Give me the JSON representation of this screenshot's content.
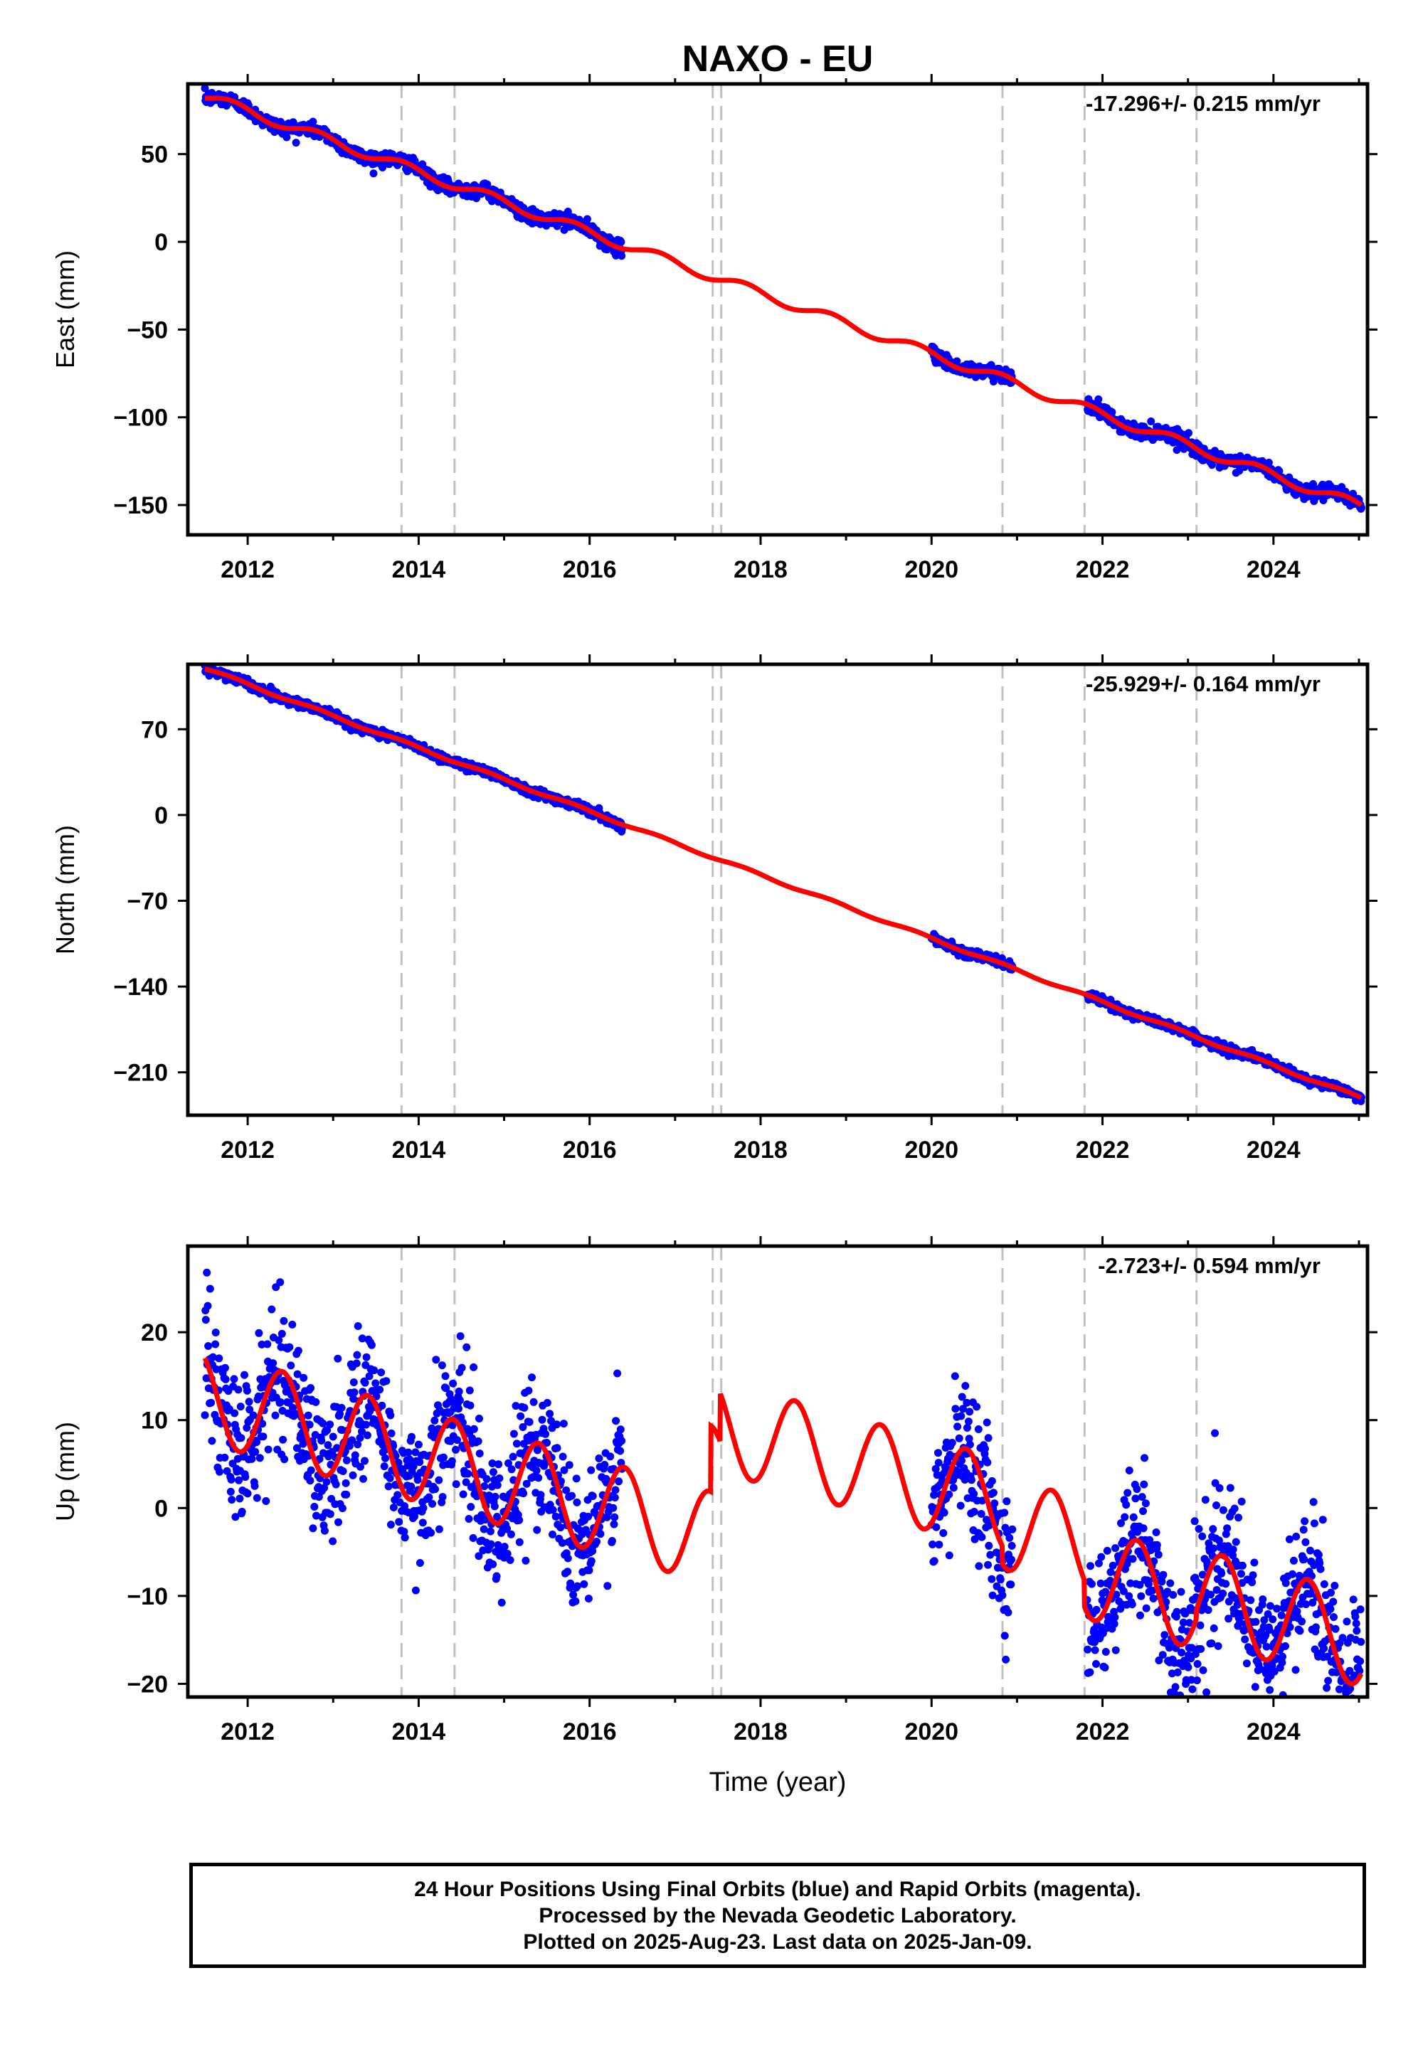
{
  "title": "NAXO - EU",
  "xlabel": "Time (year)",
  "colors": {
    "data": "#0000ff",
    "model": "#ff0000",
    "events": "#c0c0c0",
    "frame": "#000000"
  },
  "caption": {
    "line1": "24 Hour Positions Using Final Orbits (blue) and Rapid Orbits (magenta).",
    "line2": "Processed by the Nevada Geodetic Laboratory.",
    "line3": "Plotted on 2025-Aug-23. Last data on 2025-Jan-09."
  },
  "chart_data": [
    {
      "type": "scatter",
      "component": "east",
      "ylabel": "East (mm)",
      "rate_label": "-17.296+/- 0.215 mm/yr",
      "rate": -17.296,
      "xlim": [
        2011.3,
        2025.1
      ],
      "ylim": [
        -167,
        90
      ],
      "xticks": [
        2012,
        2014,
        2016,
        2018,
        2020,
        2022,
        2024
      ],
      "yticks": [
        50,
        0,
        -50,
        -100,
        -150
      ],
      "ytick_labels": [
        "50",
        "0",
        "−50",
        "−100",
        "−150"
      ],
      "event_lines": [
        2013.8,
        2014.42,
        2017.44,
        2017.54,
        2020.83,
        2021.79,
        2023.1
      ],
      "data_spans": [
        [
          2011.5,
          2016.38
        ],
        [
          2020.0,
          2020.95
        ],
        [
          2021.82,
          2025.03
        ]
      ],
      "scatter_sd": 2.0,
      "model": {
        "t0": 2016.0,
        "offset": 5.3,
        "slope": -17.296,
        "annual_sin": -2.5,
        "annual_cos": 1.2,
        "semiannual_sin": 0.0,
        "semiannual_cos": 0.0,
        "steps": []
      }
    },
    {
      "type": "scatter",
      "component": "north",
      "ylabel": "North (mm)",
      "rate_label": "-25.929+/- 0.164 mm/yr",
      "rate": -25.929,
      "xlim": [
        2011.3,
        2025.1
      ],
      "ylim": [
        -245,
        123
      ],
      "xticks": [
        2012,
        2014,
        2016,
        2018,
        2020,
        2022,
        2024
      ],
      "yticks": [
        70,
        0,
        -70,
        -140,
        -210
      ],
      "ytick_labels": [
        "70",
        "0",
        "−70",
        "−140",
        "−210"
      ],
      "event_lines": [
        2013.8,
        2014.42,
        2017.44,
        2017.54,
        2020.83,
        2021.79,
        2023.1
      ],
      "data_spans": [
        [
          2011.5,
          2016.38
        ],
        [
          2020.0,
          2020.95
        ],
        [
          2021.82,
          2025.03
        ]
      ],
      "scatter_sd": 1.8,
      "model": {
        "t0": 2016.0,
        "offset": 3.0,
        "slope": -25.929,
        "annual_sin": -1.0,
        "annual_cos": 0.5,
        "semiannual_sin": 0.0,
        "semiannual_cos": 0.0,
        "steps": []
      }
    },
    {
      "type": "scatter",
      "component": "up",
      "ylabel": "Up (mm)",
      "rate_label": "-2.723+/- 0.594 mm/yr",
      "rate": -2.723,
      "xlim": [
        2011.3,
        2025.1
      ],
      "ylim": [
        -21.5,
        29.8
      ],
      "xticks": [
        2012,
        2014,
        2016,
        2018,
        2020,
        2022,
        2024
      ],
      "yticks": [
        20,
        10,
        0,
        -10,
        -20
      ],
      "ytick_labels": [
        "20",
        "10",
        "0",
        "−10",
        "−20"
      ],
      "event_lines": [
        2013.8,
        2014.42,
        2017.44,
        2017.54,
        2020.83,
        2021.79,
        2023.1
      ],
      "data_spans": [
        [
          2011.5,
          2016.38
        ],
        [
          2020.0,
          2020.95
        ],
        [
          2021.82,
          2025.03
        ]
      ],
      "scatter_sd": 4.0,
      "model": {
        "t0": 2016.0,
        "offset": 0.5,
        "slope": -2.723,
        "annual_sin": 3.0,
        "annual_cos": -4.3,
        "semiannual_sin": 0.0,
        "semiannual_cos": 0.0,
        "steps": [
          [
            2017.42,
            7.5
          ],
          [
            2017.53,
            5.5
          ],
          [
            2020.83,
            -2.0
          ],
          [
            2021.79,
            -3.0
          ],
          [
            2023.1,
            1.0
          ]
        ]
      }
    }
  ]
}
